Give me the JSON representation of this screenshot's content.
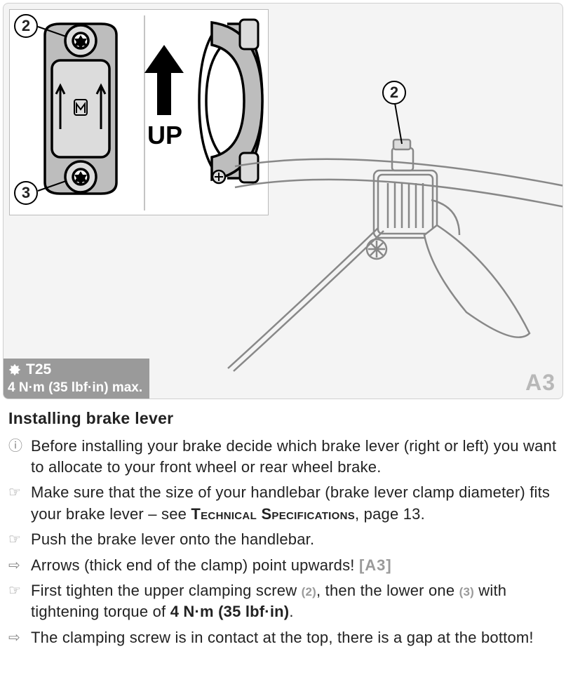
{
  "figure": {
    "label": "A3",
    "torque_tool": "T25",
    "torque_value": "4 N·m (35 lbf·in) max.",
    "up_label": "UP",
    "callouts": {
      "top_screw": "2",
      "bottom_screw": "3",
      "lever_screw": "2"
    },
    "colors": {
      "panel_bg": "#f4f4f4",
      "inset_bg": "#ffffff",
      "badge_bg": "#9a9a9a",
      "badge_text": "#ffffff",
      "fig_label": "#b8b8b8",
      "line_dark": "#000000",
      "line_mid": "#888888",
      "clamp_fill": "#bdbdbd",
      "clamp_inner": "#dcdcdc"
    }
  },
  "text": {
    "heading": "Installing brake lever",
    "items": [
      {
        "bullet": "info",
        "html": "Before installing your brake decide which brake lever (right or left) you want to allocate to your front wheel or rear wheel brake."
      },
      {
        "bullet": "hand",
        "html": "Make sure that the size of your handlebar (brake lever clamp diameter) fits your brake lever – see <span class=\"smallcaps\">Technical Specifications</span>, page 13."
      },
      {
        "bullet": "hand",
        "html": "Push the brake lever onto the handlebar."
      },
      {
        "bullet": "arrow",
        "html": "Arrows (thick end of the clamp) point upwards! <span class=\"ref-fig\">[A3]</span>"
      },
      {
        "bullet": "hand",
        "html": "First tighten the upper clamping screw <span class=\"ref-num\">(2)</span>, then the lower one <span class=\"ref-num\">(3)</span> with tightening torque of <span class=\"strong\">4 N·m (35 lbf·in)</span>."
      },
      {
        "bullet": "arrow",
        "html": "The clamping screw is in contact at the top, there is a gap at the bottom!"
      }
    ]
  }
}
